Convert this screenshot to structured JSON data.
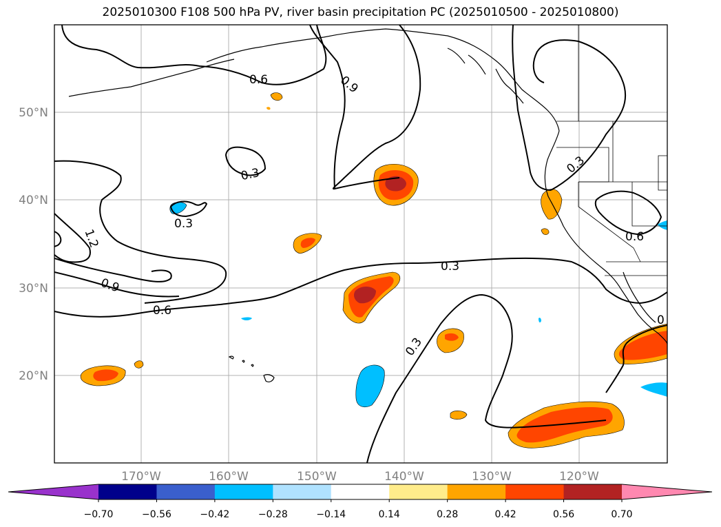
{
  "title": "2025010300 F108 500 hPa PV, river basin precipitation PC (2025010500 - 2025010800)",
  "lat_ticks": [
    "50°N",
    "40°N",
    "30°N",
    "20°N"
  ],
  "lon_ticks": [
    "170°W",
    "160°W",
    "150°W",
    "140°W",
    "130°W",
    "120°W"
  ],
  "contour_labels": [
    "0.6",
    "0.9",
    "0.3",
    "0.3",
    "0.3",
    "1.2",
    "0.9",
    "0.6",
    "0.3",
    "0.3",
    "0.6",
    "0"
  ],
  "colorbar": {
    "colors": [
      "#9932cc",
      "#00008b",
      "#3a5fcd",
      "#00bfff",
      "#b0e2ff",
      "#ffffff",
      "#ffec8b",
      "#ffa500",
      "#ff4500",
      "#b22222",
      "#ff88b0"
    ],
    "labels": [
      "−0.70",
      "−0.56",
      "−0.42",
      "−0.28",
      "−0.14",
      "0.14",
      "0.28",
      "0.42",
      "0.56",
      "0.70"
    ]
  }
}
